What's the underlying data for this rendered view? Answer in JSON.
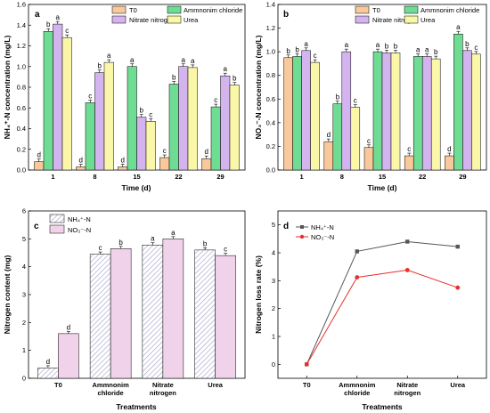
{
  "colors": {
    "T0": "#f9c89b",
    "Ammonium": "#6fdc94",
    "Nitrate": "#d4b4ef",
    "Urea": "#fbf7a8",
    "NH4_hatch": "#b7b3d6",
    "NO3_fill": "#f0d3ea",
    "line_nh4": "#555555",
    "line_no3": "#e6302a"
  },
  "chart_data": [
    {
      "panel": "a",
      "type": "bar",
      "categories": [
        "1",
        "8",
        "15",
        "22",
        "29"
      ],
      "series": [
        {
          "name": "T0",
          "values": [
            0.08,
            0.03,
            0.03,
            0.12,
            0.11
          ],
          "labels": [
            "d",
            "d",
            "d",
            "c",
            "d"
          ]
        },
        {
          "name": "Ammnonim chloride",
          "values": [
            1.34,
            0.65,
            1.0,
            0.83,
            0.61
          ],
          "labels": [
            "b",
            "c",
            "a",
            "b",
            "c"
          ]
        },
        {
          "name": "Nitrate nitrogen",
          "values": [
            1.41,
            0.94,
            0.51,
            1.0,
            0.91
          ],
          "labels": [
            "a",
            "b",
            "b",
            "a",
            "a"
          ]
        },
        {
          "name": "Urea",
          "values": [
            1.28,
            1.04,
            0.47,
            0.99,
            0.82
          ],
          "labels": [
            "c",
            "a",
            "c",
            "a",
            "b"
          ]
        }
      ],
      "xlabel": "Time (d)",
      "ylabel": "NH₄⁺-N concentration (mg/L)",
      "ylim": [
        0,
        1.6
      ],
      "yticks": [
        "0.0",
        "0.2",
        "0.4",
        "0.6",
        "0.8",
        "1.0",
        "1.2",
        "1.4",
        "1.6"
      ],
      "legend": "top"
    },
    {
      "panel": "b",
      "type": "bar",
      "categories": [
        "1",
        "8",
        "15",
        "22",
        "29"
      ],
      "series": [
        {
          "name": "T0",
          "values": [
            0.95,
            0.24,
            0.19,
            0.12,
            0.12
          ],
          "labels": [
            "b",
            "d",
            "c",
            "c",
            "d"
          ]
        },
        {
          "name": "Ammnonim chloride",
          "values": [
            0.96,
            0.56,
            1.0,
            0.96,
            1.15
          ],
          "labels": [
            "b",
            "b",
            "a",
            "a",
            "a"
          ]
        },
        {
          "name": "Nitrate nitrogen",
          "values": [
            1.01,
            1.0,
            0.99,
            0.96,
            1.01
          ],
          "labels": [
            "a",
            "a",
            "b",
            "a",
            "b"
          ]
        },
        {
          "name": "Urea",
          "values": [
            0.91,
            0.53,
            0.99,
            0.94,
            0.98
          ],
          "labels": [
            "c",
            "c",
            "b",
            "b",
            "c"
          ]
        }
      ],
      "xlabel": "Time (d)",
      "ylabel": "NO₃⁻-N concentration (mg/L)",
      "ylim": [
        0,
        1.4
      ],
      "yticks": [
        "0.0",
        "0.2",
        "0.4",
        "0.6",
        "0.8",
        "1.0",
        "1.2",
        "1.4"
      ],
      "legend": "top"
    },
    {
      "panel": "c",
      "type": "bar",
      "categories": [
        "T0",
        "Ammnonim chloride",
        "Nitrate nitrogen",
        "Urea"
      ],
      "series": [
        {
          "name": "NH₄⁺-N",
          "values": [
            0.37,
            4.45,
            4.78,
            4.6
          ],
          "labels": [
            "d",
            "c",
            "a",
            "b"
          ]
        },
        {
          "name": "NO₃⁻-N",
          "values": [
            1.6,
            4.65,
            5.0,
            4.4
          ],
          "labels": [
            "d",
            "b",
            "a",
            "c"
          ]
        }
      ],
      "xlabel": "Treatments",
      "ylabel": "Nitrogen content (mg)",
      "ylim": [
        0,
        6
      ],
      "yticks": [
        "0",
        "1",
        "2",
        "3",
        "4",
        "5",
        "6"
      ],
      "legend": "top-left"
    },
    {
      "panel": "d",
      "type": "line",
      "categories": [
        "T0",
        "Ammnonim chloride",
        "Nitrate nitrogen",
        "Urea"
      ],
      "series": [
        {
          "name": "NH₄⁺-N",
          "values": [
            0.0,
            4.05,
            4.4,
            4.22
          ]
        },
        {
          "name": "NO₃⁻-N",
          "values": [
            0.0,
            3.12,
            3.38,
            2.75
          ]
        }
      ],
      "xlabel": "Treatments",
      "ylabel": "Nitrogen loss rate (%)",
      "ylim": [
        -0.5,
        5.5
      ],
      "yticks": [
        "0",
        "1",
        "2",
        "3",
        "4",
        "5"
      ],
      "legend": "top-left"
    }
  ]
}
